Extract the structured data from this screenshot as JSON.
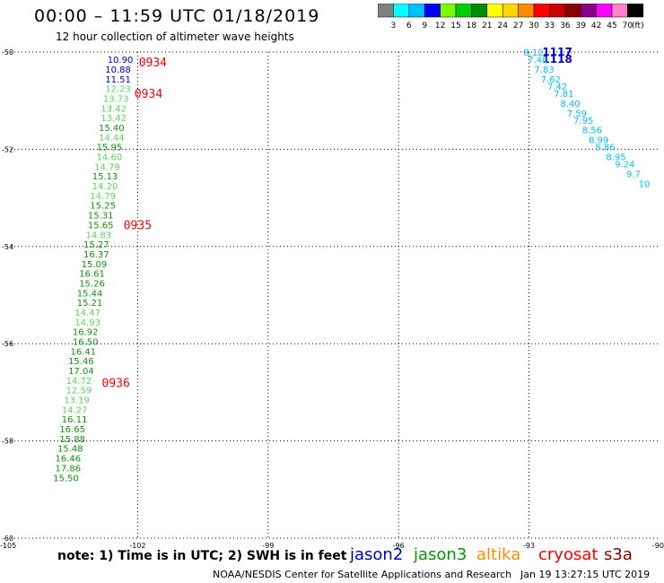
{
  "header": {
    "title": "00:00 – 11:59 UTC 01/18/2019",
    "subtitle": "12 hour collection of altimeter wave heights"
  },
  "colorbar": {
    "unit_label": "(ft)",
    "ticks": [
      "3",
      "6",
      "9",
      "12",
      "15",
      "18",
      "21",
      "24",
      "27",
      "30",
      "33",
      "36",
      "39",
      "42",
      "45",
      "70"
    ],
    "colors": [
      "#808080",
      "#00ffff",
      "#00bfff",
      "#0000ff",
      "#7cfc00",
      "#00cd00",
      "#008b00",
      "#ffff00",
      "#ffd700",
      "#ff8c00",
      "#ff0000",
      "#cd0000",
      "#8b0000",
      "#8b008b",
      "#ff00ff",
      "#ff82c8",
      "#000000"
    ]
  },
  "chart_data": {
    "type": "scatter",
    "xlim": [
      -105,
      -90
    ],
    "ylim": [
      -60,
      -50
    ],
    "x_ticks": [
      -105,
      -102,
      -99,
      -96,
      -93,
      -90
    ],
    "y_ticks": [
      -50,
      -52,
      -54,
      -56,
      -58,
      -60
    ],
    "x_tick_labels": [
      "-105",
      "-102",
      "-99",
      "-96",
      "-93",
      "-90"
    ],
    "y_tick_labels": [
      "-50",
      "-52",
      "-54",
      "-56",
      "-58",
      "-60"
    ],
    "grid": true,
    "series": [
      {
        "name": "jason2",
        "color": "#0000cc",
        "points": [
          {
            "lon": -102.4,
            "lat": -50.15,
            "value": "10.90"
          },
          {
            "lon": -102.45,
            "lat": -50.35,
            "value": "10.88"
          },
          {
            "lon": -102.45,
            "lat": -50.55,
            "value": "11.51"
          }
        ]
      },
      {
        "name": "jason2",
        "color": "#0000cc",
        "points": [
          {
            "lon": -92.35,
            "lat": -50.0,
            "value": "1117"
          },
          {
            "lon": -92.35,
            "lat": -50.15,
            "value": "1118"
          }
        ]
      },
      {
        "name": "jason3",
        "color": "#228b22",
        "points": [
          {
            "lon": -102.45,
            "lat": -50.75,
            "value": "12.23"
          },
          {
            "lon": -102.5,
            "lat": -50.95,
            "value": "13.73"
          },
          {
            "lon": -102.55,
            "lat": -51.15,
            "value": "13.42"
          },
          {
            "lon": -102.55,
            "lat": -51.35,
            "value": "13.42"
          },
          {
            "lon": -102.6,
            "lat": -51.55,
            "value": "15.40"
          },
          {
            "lon": -102.6,
            "lat": -51.75,
            "value": "14.44"
          },
          {
            "lon": -102.65,
            "lat": -51.95,
            "value": "15.95"
          },
          {
            "lon": -102.65,
            "lat": -52.15,
            "value": "14.60"
          },
          {
            "lon": -102.7,
            "lat": -52.35,
            "value": "14.79"
          },
          {
            "lon": -102.75,
            "lat": -52.55,
            "value": "15.13"
          },
          {
            "lon": -102.75,
            "lat": -52.75,
            "value": "14.20"
          },
          {
            "lon": -102.8,
            "lat": -52.95,
            "value": "14.79"
          },
          {
            "lon": -102.8,
            "lat": -53.15,
            "value": "15.25"
          },
          {
            "lon": -102.85,
            "lat": -53.35,
            "value": "15.31"
          },
          {
            "lon": -102.85,
            "lat": -53.55,
            "value": "15.65"
          },
          {
            "lon": -102.9,
            "lat": -53.75,
            "value": "14.83"
          },
          {
            "lon": -102.95,
            "lat": -53.95,
            "value": "15.27"
          },
          {
            "lon": -102.95,
            "lat": -54.15,
            "value": "16.37"
          },
          {
            "lon": -103.0,
            "lat": -54.35,
            "value": "15.09"
          },
          {
            "lon": -103.05,
            "lat": -54.55,
            "value": "16.61"
          },
          {
            "lon": -103.05,
            "lat": -54.75,
            "value": "15.26"
          },
          {
            "lon": -103.1,
            "lat": -54.95,
            "value": "15.44"
          },
          {
            "lon": -103.1,
            "lat": -55.15,
            "value": "15.21"
          },
          {
            "lon": -103.15,
            "lat": -55.35,
            "value": "14.47"
          },
          {
            "lon": -103.15,
            "lat": -55.55,
            "value": "14.93"
          },
          {
            "lon": -103.2,
            "lat": -55.75,
            "value": "16.92"
          },
          {
            "lon": -103.2,
            "lat": -55.95,
            "value": "16.50"
          },
          {
            "lon": -103.25,
            "lat": -56.15,
            "value": "16.41"
          },
          {
            "lon": -103.3,
            "lat": -56.35,
            "value": "15.46"
          },
          {
            "lon": -103.3,
            "lat": -56.55,
            "value": "17.04"
          },
          {
            "lon": -103.35,
            "lat": -56.75,
            "value": "14.72"
          },
          {
            "lon": -103.35,
            "lat": -56.95,
            "value": "12.59"
          },
          {
            "lon": -103.4,
            "lat": -57.15,
            "value": "13.19"
          },
          {
            "lon": -103.45,
            "lat": -57.35,
            "value": "14.27"
          },
          {
            "lon": -103.45,
            "lat": -57.55,
            "value": "16.11"
          },
          {
            "lon": -103.5,
            "lat": -57.75,
            "value": "16.65"
          },
          {
            "lon": -103.5,
            "lat": -57.95,
            "value": "15.88"
          },
          {
            "lon": -103.55,
            "lat": -58.15,
            "value": "15.48"
          },
          {
            "lon": -103.6,
            "lat": -58.35,
            "value": "16.46"
          },
          {
            "lon": -103.6,
            "lat": -58.55,
            "value": "17.86"
          },
          {
            "lon": -103.65,
            "lat": -58.75,
            "value": "15.50"
          }
        ]
      },
      {
        "name": "jason2",
        "color": "#00bfff",
        "points": [
          {
            "lon": -92.9,
            "lat": -50.0,
            "value": "8.12"
          },
          {
            "lon": -92.8,
            "lat": -50.15,
            "value": "7.48"
          },
          {
            "lon": -92.65,
            "lat": -50.35,
            "value": "7.83"
          },
          {
            "lon": -92.5,
            "lat": -50.55,
            "value": "7.62"
          },
          {
            "lon": -92.35,
            "lat": -50.7,
            "value": "7.42"
          },
          {
            "lon": -92.2,
            "lat": -50.85,
            "value": "7.81"
          },
          {
            "lon": -92.05,
            "lat": -51.05,
            "value": "8.40"
          },
          {
            "lon": -91.9,
            "lat": -51.25,
            "value": "7.59"
          },
          {
            "lon": -91.75,
            "lat": -51.4,
            "value": "7.95"
          },
          {
            "lon": -91.55,
            "lat": -51.6,
            "value": "8.56"
          },
          {
            "lon": -91.4,
            "lat": -51.8,
            "value": "8.99"
          },
          {
            "lon": -91.25,
            "lat": -51.95,
            "value": "8.86"
          },
          {
            "lon": -91.0,
            "lat": -52.15,
            "value": "8.95"
          },
          {
            "lon": -90.8,
            "lat": -52.3,
            "value": "9.24"
          },
          {
            "lon": -90.6,
            "lat": -52.5,
            "value": "9.7"
          },
          {
            "lon": -90.35,
            "lat": -52.7,
            "value": "10"
          }
        ]
      }
    ],
    "time_labels": [
      {
        "lon": -101.65,
        "lat": -50.2,
        "text": "0934",
        "color": "#ff0000"
      },
      {
        "lon": -101.75,
        "lat": -50.85,
        "text": "0934",
        "color": "#ff0000"
      },
      {
        "lon": -102.0,
        "lat": -53.55,
        "text": "0935",
        "color": "#ff0000"
      },
      {
        "lon": -102.5,
        "lat": -56.8,
        "text": "0936",
        "color": "#ff0000"
      }
    ]
  },
  "footer": {
    "note": "note: 1) Time is in UTC; 2) SWH is in feet",
    "satellites": [
      {
        "name": "jason2",
        "color": "#0000cc"
      },
      {
        "name": "jason3",
        "color": "#009900"
      },
      {
        "name": "altika",
        "color": "#ff8c00"
      },
      {
        "name": "cryosat",
        "color": "#ff0000"
      },
      {
        "name": "s3a",
        "color": "#8b0000"
      }
    ],
    "credit": "NOAA/NESDIS Center for Satellite Applications and Research",
    "timestamp": "Jan 19 13:27:15 UTC 2019"
  }
}
